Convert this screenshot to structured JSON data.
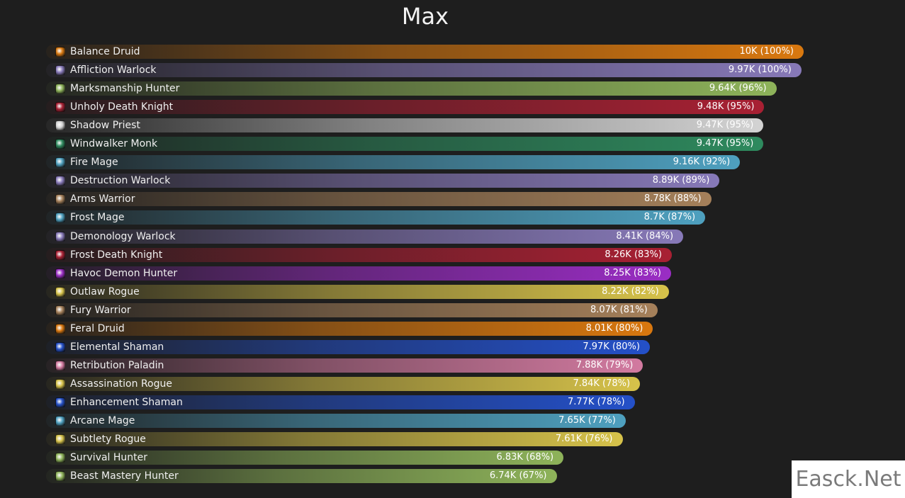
{
  "chart_data": {
    "type": "bar",
    "orientation": "horizontal",
    "title": "Max",
    "xlabel": "",
    "ylabel": "",
    "xlim": [
      0,
      10000
    ],
    "grid": false,
    "legend": "none",
    "categories": [
      "Balance Druid",
      "Affliction Warlock",
      "Marksmanship Hunter",
      "Unholy Death Knight",
      "Shadow Priest",
      "Windwalker Monk",
      "Fire Mage",
      "Destruction Warlock",
      "Arms Warrior",
      "Frost Mage",
      "Demonology Warlock",
      "Frost Death Knight",
      "Havoc Demon Hunter",
      "Outlaw Rogue",
      "Fury Warrior",
      "Feral Druid",
      "Elemental Shaman",
      "Retribution Paladin",
      "Assassination Rogue",
      "Enhancement Shaman",
      "Arcane Mage",
      "Subtlety Rogue",
      "Survival Hunter",
      "Beast Mastery Hunter"
    ],
    "values": [
      10000,
      9970,
      9640,
      9480,
      9470,
      9470,
      9160,
      8890,
      8780,
      8700,
      8410,
      8260,
      8250,
      8220,
      8070,
      8010,
      7970,
      7880,
      7840,
      7770,
      7650,
      7610,
      6830,
      6740
    ],
    "value_labels": [
      "10K (100%)",
      "9.97K (100%)",
      "9.64K (96%)",
      "9.48K (95%)",
      "9.47K (95%)",
      "9.47K (95%)",
      "9.16K (92%)",
      "8.89K (89%)",
      "8.78K (88%)",
      "8.7K (87%)",
      "8.41K (84%)",
      "8.26K (83%)",
      "8.25K (83%)",
      "8.22K (82%)",
      "8.07K (81%)",
      "8.01K (80%)",
      "7.97K (80%)",
      "7.88K (79%)",
      "7.84K (78%)",
      "7.77K (78%)",
      "7.65K (77%)",
      "7.61K (76%)",
      "6.83K (68%)",
      "6.74K (67%)"
    ],
    "colors": [
      "#d9780f",
      "#8779b8",
      "#8eb35a",
      "#a82033",
      "#d3d3d3",
      "#2e8a5e",
      "#4ea0bf",
      "#8779b8",
      "#a5805a",
      "#4ea0bf",
      "#8779b8",
      "#a82033",
      "#9a2dc4",
      "#d6c24a",
      "#a5805a",
      "#d9780f",
      "#2450c8",
      "#d27aa0",
      "#d6c24a",
      "#2450c8",
      "#4ea0bf",
      "#d6c24a",
      "#8eb35a",
      "#8eb35a"
    ],
    "icons": [
      "balance-druid-icon",
      "affliction-warlock-icon",
      "marksmanship-hunter-icon",
      "unholy-death-knight-icon",
      "shadow-priest-icon",
      "windwalker-monk-icon",
      "fire-mage-icon",
      "destruction-warlock-icon",
      "arms-warrior-icon",
      "frost-mage-icon",
      "demonology-warlock-icon",
      "frost-death-knight-icon",
      "havoc-demon-hunter-icon",
      "outlaw-rogue-icon",
      "fury-warrior-icon",
      "feral-druid-icon",
      "elemental-shaman-icon",
      "retribution-paladin-icon",
      "assassination-rogue-icon",
      "enhancement-shaman-icon",
      "arcane-mage-icon",
      "subtlety-rogue-icon",
      "survival-hunter-icon",
      "beast-mastery-hunter-icon"
    ]
  },
  "watermark": "Easck.Net"
}
